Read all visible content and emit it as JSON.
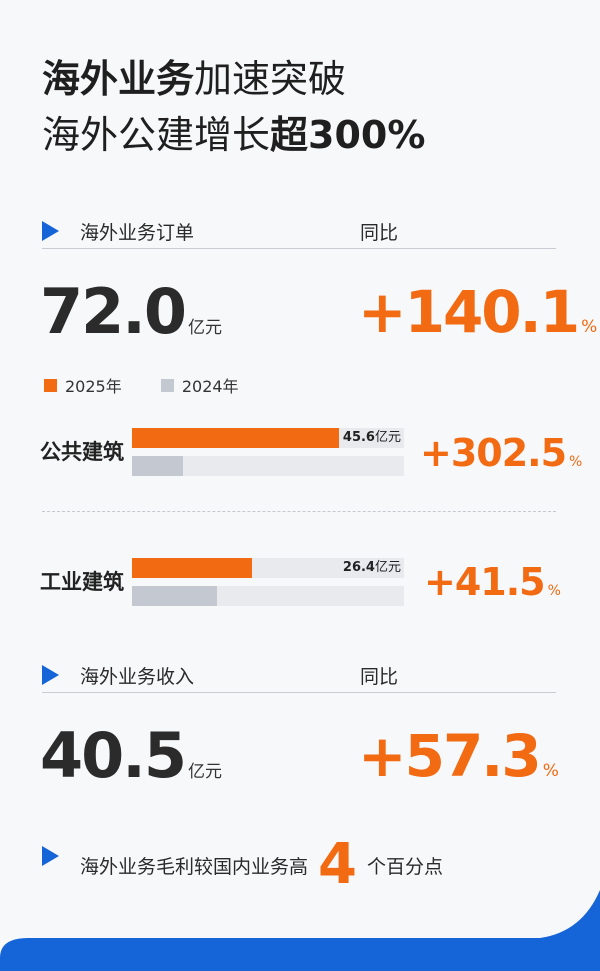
{
  "title": {
    "line1_bold": "海外业务",
    "line1_rest": "加速突破",
    "line2_normal": "海外公建增长",
    "line2_bold": "超300%"
  },
  "orders": {
    "label": "海外业务订单",
    "yoy_label": "同比",
    "value": "72.0",
    "unit": "亿元",
    "yoy_value": "+140.1",
    "yoy_unit": "%"
  },
  "legend": {
    "items": [
      {
        "label": "2025年",
        "color": "#f26a12"
      },
      {
        "label": "2024年",
        "color": "#c4c9d1"
      }
    ]
  },
  "categories": [
    {
      "label": "公共建筑",
      "value_2025_text": "45.6",
      "value_unit": "亿元",
      "yoy": "+302.5",
      "yoy_unit": "%"
    },
    {
      "label": "工业建筑",
      "value_2025_text": "26.4",
      "value_unit": "亿元",
      "yoy": "+41.5",
      "yoy_unit": "%"
    }
  ],
  "revenue": {
    "label": "海外业务收入",
    "yoy_label": "同比",
    "value": "40.5",
    "unit": "亿元",
    "yoy_value": "+57.3",
    "yoy_unit": "%"
  },
  "note": {
    "prefix": "海外业务毛利较国内业务高",
    "number": "4",
    "suffix": "个百分点"
  },
  "colors": {
    "accent_orange": "#f26a12",
    "accent_blue": "#1565d8",
    "gray_bar": "#c4c9d1",
    "track": "#e8eaee"
  },
  "chart_data": {
    "type": "bar",
    "orientation": "horizontal",
    "categories": [
      "公共建筑",
      "工业建筑"
    ],
    "series": [
      {
        "name": "2025年",
        "values": [
          45.6,
          26.4
        ]
      },
      {
        "name": "2024年",
        "values": [
          11.3,
          18.7
        ]
      }
    ],
    "value_unit": "亿元",
    "yoy_percent": [
      302.5,
      41.5
    ],
    "xlim": [
      0,
      60
    ],
    "legend_position": "top-left",
    "grid": false
  }
}
